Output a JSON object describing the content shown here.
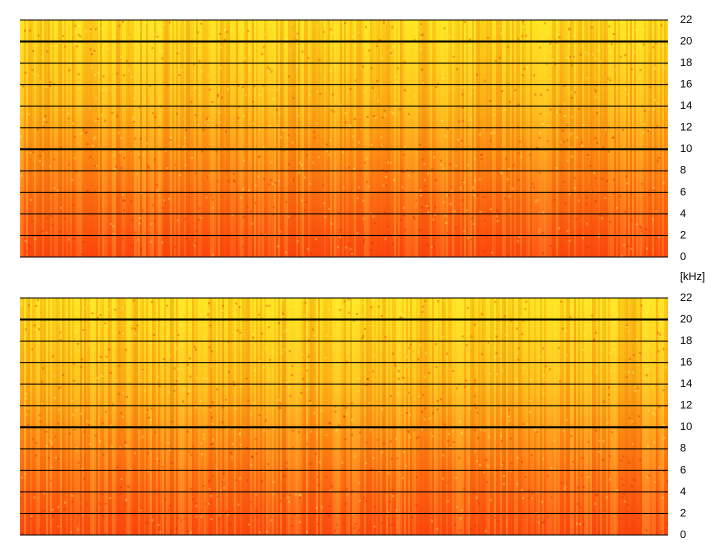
{
  "chart_data": [
    {
      "type": "spectrogram",
      "ylim": [
        0,
        22
      ],
      "yticks": [
        0,
        2,
        4,
        6,
        8,
        10,
        12,
        14,
        16,
        18,
        20,
        22
      ],
      "y_label": "[kHz]",
      "grid": true
    },
    {
      "type": "spectrogram",
      "ylim": [
        0,
        22
      ],
      "yticks": [
        0,
        2,
        4,
        6,
        8,
        10,
        12,
        14,
        16,
        18,
        20,
        22
      ],
      "grid": true
    }
  ]
}
